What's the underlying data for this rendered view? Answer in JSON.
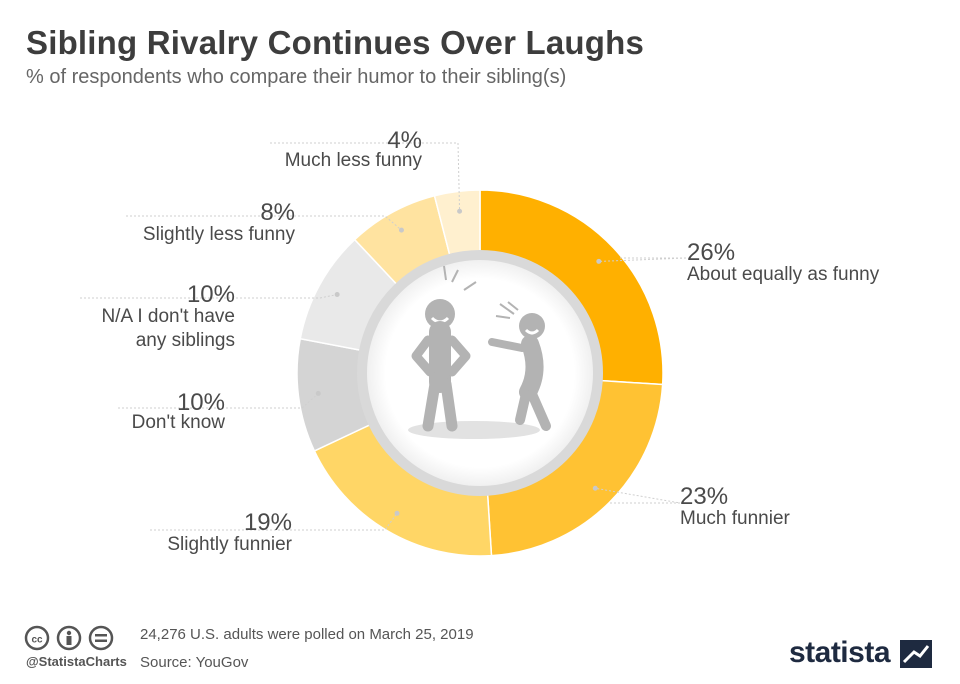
{
  "header": {
    "title": "Sibling Rivalry Continues Over Laughs",
    "subtitle": "% of respondents who compare their humor to their sibling(s)"
  },
  "chart_data": {
    "type": "pie",
    "variant": "donut",
    "title": "Sibling Rivalry Continues Over Laughs",
    "subtitle": "% of respondents who compare their humor to their sibling(s)",
    "unit": "%",
    "slices": [
      {
        "label": "About equally as funny",
        "value": 26,
        "value_label": "26%",
        "color": "#FFB000"
      },
      {
        "label": "Much funnier",
        "value": 23,
        "value_label": "23%",
        "color": "#FFC233"
      },
      {
        "label": "Slightly funnier",
        "value": 19,
        "value_label": "19%",
        "color": "#FFD666"
      },
      {
        "label": "Don't know",
        "value": 10,
        "value_label": "10%",
        "color": "#D4D4D4"
      },
      {
        "label": "N/A I don't have any siblings",
        "value": 10,
        "value_label": "10%",
        "color": "#E9E9E9"
      },
      {
        "label": "Slightly less funny",
        "value": 8,
        "value_label": "8%",
        "color": "#FFE3A0"
      },
      {
        "label": "Much less funny",
        "value": 4,
        "value_label": "4%",
        "color": "#FFF0CF"
      }
    ]
  },
  "footer": {
    "note": "24,276 U.S. adults were polled on March 25, 2019",
    "source": "Source: YouGov",
    "handle": "@StatistaCharts",
    "brand": "statista"
  },
  "icons": {
    "cc": "creative-commons-icon",
    "by": "attribution-icon",
    "nd": "no-derivatives-icon",
    "illustration": "laughing-figures-illustration",
    "brand_mark": "statista-logo-icon"
  }
}
